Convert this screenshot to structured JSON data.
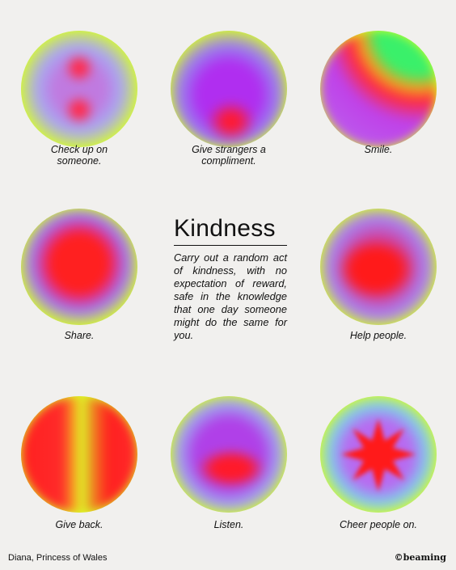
{
  "title": "Kindness",
  "quote": "Carry out a random act of kindness, with no expectation of reward, safe in the knowledge that one day someone might do the same for you.",
  "cards": [
    {
      "caption": "Check up on someone."
    },
    {
      "caption": "Give strangers a compliment."
    },
    {
      "caption": "Smile."
    },
    {
      "caption": "Share."
    },
    {
      "caption": "Help people."
    },
    {
      "caption": "Give back."
    },
    {
      "caption": "Listen."
    },
    {
      "caption": "Cheer people on."
    }
  ],
  "footer": {
    "attribution": "Diana, Princess of Wales",
    "brand": "©beaming"
  }
}
